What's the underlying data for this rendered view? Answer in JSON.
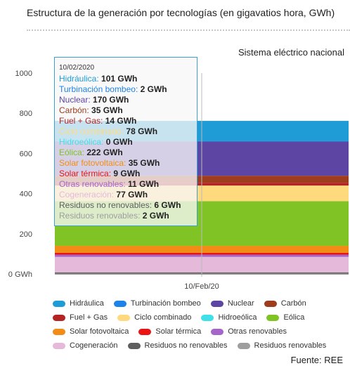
{
  "chart_data": {
    "type": "bar",
    "title": "Estructura de la generación por tecnologías (en gigavatios hora, GWh)",
    "subtitle": "Sistema eléctrico nacional",
    "source": "Fuente: REE",
    "categories": [
      "10/Feb/20"
    ],
    "y_ticks": [
      "0 GWh",
      "200",
      "400",
      "600",
      "800",
      "1000"
    ],
    "ylim": [
      0,
      1000
    ],
    "stacked": true,
    "grid": false,
    "legend_position": "bottom",
    "series": [
      {
        "name": "Hidráulica",
        "color": "#1f9bd6",
        "values": [
          101
        ]
      },
      {
        "name": "Turbinación bombeo",
        "color": "#1d83e8",
        "values": [
          2
        ]
      },
      {
        "name": "Nuclear",
        "color": "#5d45a3",
        "values": [
          170
        ]
      },
      {
        "name": "Carbón",
        "color": "#9e3c1d",
        "values": [
          35
        ]
      },
      {
        "name": "Fuel + Gas",
        "color": "#b52424",
        "values": [
          14
        ]
      },
      {
        "name": "Ciclo combinado",
        "color": "#ffd97e",
        "values": [
          78
        ]
      },
      {
        "name": "Hidroeólica",
        "color": "#40e0e8",
        "values": [
          0
        ]
      },
      {
        "name": "Eólica",
        "color": "#7fc325",
        "values": [
          222
        ]
      },
      {
        "name": "Solar fotovoltaica",
        "color": "#f28c16",
        "values": [
          35
        ]
      },
      {
        "name": "Solar térmica",
        "color": "#ea1414",
        "values": [
          9
        ]
      },
      {
        "name": "Otras renovables",
        "color": "#a665c8",
        "values": [
          11
        ]
      },
      {
        "name": "Cogeneración",
        "color": "#e4b9d9",
        "values": [
          77
        ]
      },
      {
        "name": "Residuos no renovables",
        "color": "#5f5f5f",
        "values": [
          6
        ]
      },
      {
        "name": "Residuos renovables",
        "color": "#9e9e9e",
        "values": [
          2
        ]
      }
    ]
  },
  "tooltip": {
    "date": "10/02/2020",
    "rows": [
      {
        "label": "Hidráulica",
        "value": "101 GWh",
        "color": "#1f9bd6"
      },
      {
        "label": "Turbinación bombeo",
        "value": "2 GWh",
        "color": "#1d83e8"
      },
      {
        "label": "Nuclear",
        "value": "170 GWh",
        "color": "#5d45a3"
      },
      {
        "label": "Carbón",
        "value": "35 GWh",
        "color": "#9e3c1d"
      },
      {
        "label": "Fuel + Gas",
        "value": "14 GWh",
        "color": "#b52424"
      },
      {
        "label": "Ciclo combinado",
        "value": "78 GWh",
        "color": "#ffd97e"
      },
      {
        "label": "Hidroeólica",
        "value": "0 GWh",
        "color": "#40e0e8"
      },
      {
        "label": "Eólica",
        "value": "222 GWh",
        "color": "#7fc325"
      },
      {
        "label": "Solar fotovoltaica",
        "value": "35 GWh",
        "color": "#f28c16"
      },
      {
        "label": "Solar térmica",
        "value": "9 GWh",
        "color": "#ea1414"
      },
      {
        "label": "Otras renovables",
        "value": "11 GWh",
        "color": "#a665c8"
      },
      {
        "label": "Cogeneración",
        "value": "77 GWh",
        "color": "#e4b9d9"
      },
      {
        "label": "Residuos no renovables",
        "value": "6 GWh",
        "color": "#5f5f5f"
      },
      {
        "label": "Residuos renovables",
        "value": "2 GWh",
        "color": "#9e9e9e"
      }
    ]
  }
}
